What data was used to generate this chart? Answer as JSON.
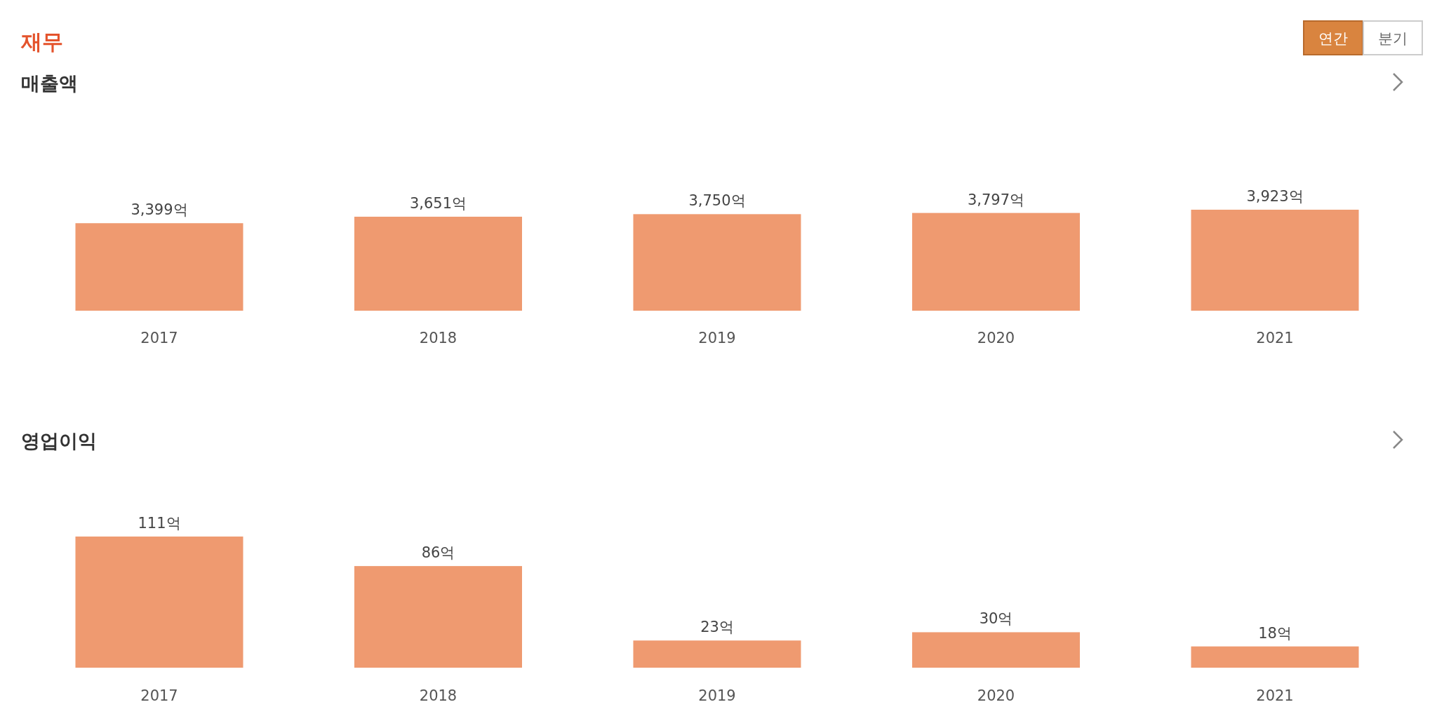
{
  "chart_data": [
    {
      "type": "bar",
      "title": "매출액",
      "annotations": [
        "재무",
        "연간",
        "분기"
      ],
      "categories": [
        "2017",
        "2018",
        "2019",
        "2020",
        "2021"
      ],
      "values": [
        3399,
        3651,
        3750,
        3797,
        3923
      ],
      "value_labels": [
        "3,399억",
        "3,651억",
        "3,750억",
        "3,797억",
        "3,923억"
      ],
      "color": "#ef9a70"
    },
    {
      "type": "bar",
      "title": "영업이익",
      "categories": [
        "2017",
        "2018",
        "2019",
        "2020",
        "2021"
      ],
      "values": [
        111,
        86,
        23,
        30,
        18
      ],
      "value_labels": [
        "111억",
        "86억",
        "23억",
        "30억",
        "18억"
      ],
      "color": "#ef9a70"
    }
  ]
}
